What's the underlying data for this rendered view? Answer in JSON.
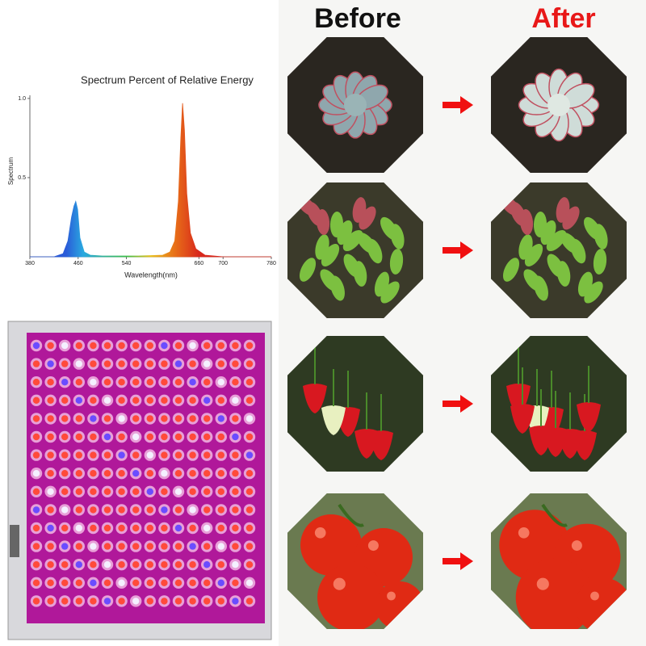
{
  "chart_data": {
    "type": "area",
    "title": "Spectrum  Percent of Relative Energy",
    "y_label": "Spectrum",
    "x_label": "Wavelength(nm)",
    "x": [
      380,
      420,
      435,
      443,
      449,
      453,
      456,
      459,
      463,
      470,
      480,
      500,
      560,
      600,
      612,
      620,
      626,
      630,
      633,
      636,
      640,
      646,
      655,
      670,
      700,
      780
    ],
    "values": [
      0,
      0,
      0.02,
      0.1,
      0.25,
      0.32,
      0.35,
      0.3,
      0.12,
      0.03,
      0.01,
      0.005,
      0.005,
      0.01,
      0.03,
      0.1,
      0.35,
      0.75,
      0.97,
      0.8,
      0.4,
      0.15,
      0.05,
      0.01,
      0,
      0
    ],
    "xlim": [
      380,
      780
    ],
    "xticks": [
      380,
      460,
      540,
      660,
      700,
      780
    ],
    "ylim": [
      0,
      1.02
    ],
    "yticks": [
      0.5,
      {
        "value": 1,
        "label": "1.0"
      }
    ]
  },
  "labels": {
    "before": "Before",
    "after": "After"
  }
}
